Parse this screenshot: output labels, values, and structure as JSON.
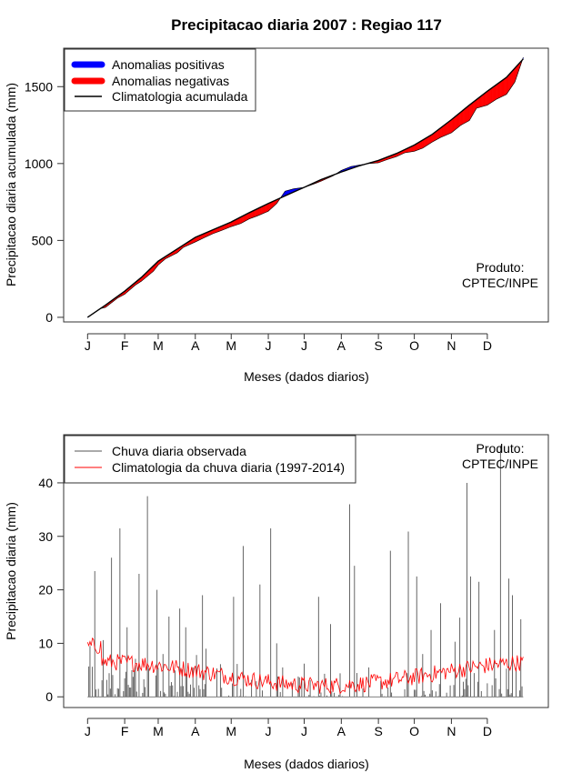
{
  "title": "Precipitacao diaria 2007 : Regiao 117",
  "colors": {
    "positive": "#0000ff",
    "negative": "#ff0000",
    "climatology_line": "#000000",
    "observed_bars": "#555555",
    "clim_daily_line": "#ff0000"
  },
  "product_label": [
    "Produto:",
    "CPTEC/INPE"
  ],
  "chart_data": [
    {
      "type": "area",
      "ylabel": "Precipitacao diaria acumulada (mm)",
      "xlabel": "Meses (dados diarios)",
      "xticks": [
        "J",
        "F",
        "M",
        "A",
        "M",
        "J",
        "J",
        "A",
        "S",
        "O",
        "N",
        "D"
      ],
      "yticks": [
        0,
        500,
        1000,
        1500
      ],
      "ylim": [
        -30,
        1750
      ],
      "xlim": [
        -20,
        385
      ],
      "legend": [
        "Anomalias positivas",
        "Anomalias negativas",
        "Climatologia acumulada"
      ],
      "climatology_cumulative": {
        "day": [
          0,
          15,
          31,
          45,
          59,
          75,
          90,
          105,
          120,
          135,
          151,
          165,
          181,
          195,
          212,
          227,
          243,
          258,
          273,
          288,
          304,
          319,
          334,
          350,
          364
        ],
        "value": [
          0,
          80,
          170,
          260,
          365,
          445,
          520,
          570,
          620,
          680,
          740,
          790,
          845,
          895,
          945,
          985,
          1020,
          1065,
          1120,
          1190,
          1285,
          1380,
          1470,
          1560,
          1680
        ]
      },
      "observed_cumulative": {
        "day": [
          0,
          10,
          15,
          25,
          31,
          40,
          45,
          55,
          59,
          65,
          75,
          80,
          90,
          98,
          105,
          112,
          120,
          128,
          135,
          142,
          151,
          158,
          165,
          172,
          181,
          190,
          195,
          205,
          212,
          220,
          227,
          235,
          243,
          250,
          258,
          265,
          273,
          280,
          288,
          295,
          304,
          312,
          319,
          325,
          334,
          342,
          350,
          357,
          364
        ],
        "value": [
          0,
          55,
          65,
          125,
          150,
          210,
          235,
          300,
          340,
          380,
          420,
          455,
          490,
          520,
          545,
          565,
          590,
          610,
          640,
          660,
          690,
          740,
          820,
          835,
          845,
          870,
          885,
          920,
          955,
          980,
          990,
          1000,
          1005,
          1025,
          1045,
          1070,
          1080,
          1100,
          1140,
          1170,
          1200,
          1250,
          1280,
          1360,
          1380,
          1420,
          1450,
          1530,
          1690
        ]
      }
    },
    {
      "type": "bar",
      "ylabel": "Precipitacao diaria (mm)",
      "xlabel": "Meses (dados diarios)",
      "xticks": [
        "J",
        "F",
        "M",
        "A",
        "M",
        "J",
        "J",
        "A",
        "S",
        "O",
        "N",
        "D"
      ],
      "yticks": [
        0,
        10,
        20,
        30,
        40
      ],
      "ylim": [
        -2,
        49
      ],
      "xlim": [
        -20,
        385
      ],
      "legend": [
        "Chuva diaria observada",
        "Climatologia da chuva diaria (1997-2014)"
      ],
      "spike_days": [
        2,
        6,
        13,
        20,
        27,
        33,
        43,
        50,
        58,
        63,
        68,
        77,
        82,
        88,
        96,
        99,
        108,
        122,
        130,
        144,
        153,
        158,
        163,
        176,
        181,
        193,
        203,
        219,
        223,
        235,
        245,
        253,
        268,
        275,
        280,
        287,
        295,
        307,
        311,
        317,
        320,
        327,
        340,
        345,
        352,
        355,
        362
      ],
      "spike_values": [
        9.5,
        23.5,
        10.6,
        26,
        31.5,
        13,
        23,
        37.5,
        20,
        8,
        15,
        16.5,
        13,
        5.5,
        19,
        9,
        5.3,
        18.7,
        28.2,
        21,
        31.5,
        10,
        5.5,
        3.8,
        6.2,
        18.7,
        13.6,
        36,
        24.5,
        5.5,
        3,
        27.3,
        30.9,
        22.5,
        8,
        12.5,
        17.5,
        10.3,
        14.8,
        40,
        22.5,
        21.5,
        12.5,
        47,
        22.1,
        19,
        14.5
      ]
    }
  ]
}
